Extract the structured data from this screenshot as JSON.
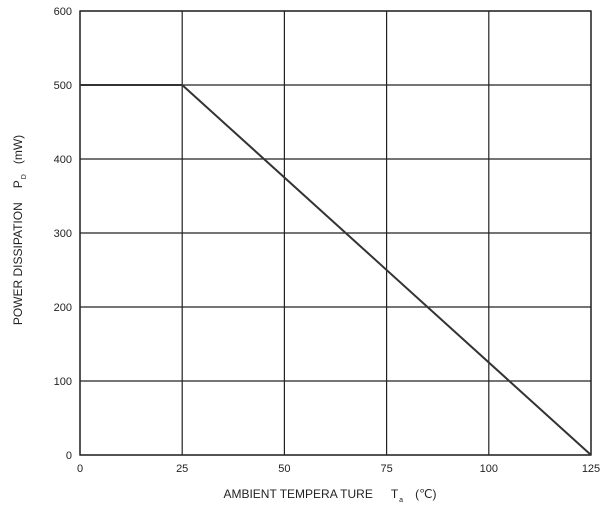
{
  "chart_data": {
    "type": "line",
    "title": "",
    "xlabel": {
      "main": "AMBIENT TEMPERA TURE",
      "symbol": "T",
      "subscript": "a",
      "unit": "(℃)"
    },
    "ylabel": {
      "main": "POWER DISSIPATION",
      "symbol": "P",
      "subscript": "D",
      "unit": "(mW)"
    },
    "xlim": [
      0,
      125
    ],
    "ylim": [
      0,
      600
    ],
    "xticks": [
      0,
      25,
      50,
      75,
      100,
      125
    ],
    "yticks": [
      0,
      100,
      200,
      300,
      400,
      500,
      600
    ],
    "xtick_labels": [
      "0",
      "25",
      "50",
      "75",
      "100",
      "125"
    ],
    "ytick_labels": [
      "0",
      "100",
      "200",
      "300",
      "400",
      "500",
      "600"
    ],
    "grid": true,
    "series": [
      {
        "x": [
          0,
          25,
          125
        ],
        "y": [
          500,
          500,
          0
        ]
      }
    ],
    "colors": {
      "line": "#333333",
      "grid": "#222222",
      "frame": "#222222"
    }
  }
}
